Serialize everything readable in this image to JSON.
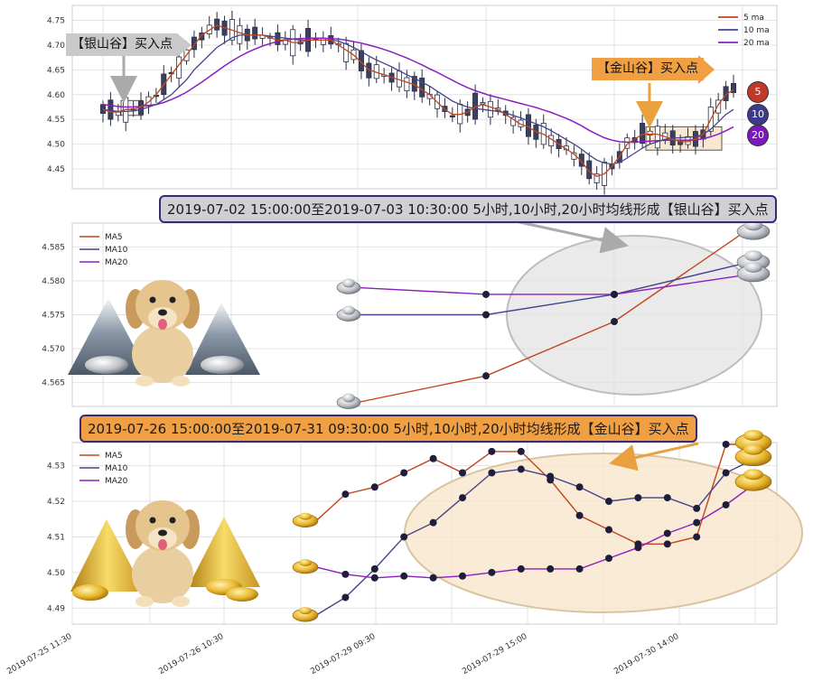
{
  "colors": {
    "ma5": "#c0461f",
    "ma10": "#44448a",
    "ma20": "#8a1fc0",
    "up_candle": "#ffffff",
    "down_candle": "#3a4060",
    "silver_banner": "#d0cfd6",
    "gold_banner": "#f0a043",
    "silver_zone": "#e3e3e3",
    "gold_zone": "#f8e6cc"
  },
  "top_panel": {
    "legend": [
      "5 ma",
      "10 ma",
      "20 ma"
    ],
    "badges": [
      "5",
      "10",
      "20"
    ],
    "silver_callout": "【银山谷】买入点",
    "gold_callout": "【金山谷】买入点"
  },
  "banners": {
    "silver": "2019-07-02 15:00:00至2019-07-03 10:30:00 5小时,10小时,20小时均线形成【银山谷】买入点",
    "gold": "2019-07-26 15:00:00至2019-07-31 09:30:00 5小时,10小时,20小时均线形成【金山谷】买入点"
  },
  "x_ticks": [
    "2019-07-25 11:30",
    "2019-07-26 10:30",
    "2019-07-29 09:30",
    "2019-07-29 15:00",
    "2019-07-30 14:00"
  ],
  "chart_data": [
    {
      "type": "candlestick",
      "yticks": [
        4.45,
        4.5,
        4.55,
        4.6,
        4.65,
        4.7,
        4.75
      ],
      "ylim": [
        4.41,
        4.78
      ],
      "n": 84,
      "ma5": [
        4.57,
        4.565,
        4.565,
        4.57,
        4.57,
        4.575,
        4.585,
        4.6,
        4.62,
        4.64,
        4.66,
        4.68,
        4.7,
        4.72,
        4.73,
        4.74,
        4.735,
        4.73,
        4.725,
        4.72,
        4.72,
        4.72,
        4.715,
        4.71,
        4.71,
        4.705,
        4.705,
        4.71,
        4.71,
        4.71,
        4.71,
        4.7,
        4.69,
        4.68,
        4.665,
        4.65,
        4.645,
        4.64,
        4.635,
        4.63,
        4.625,
        4.62,
        4.61,
        4.6,
        4.585,
        4.57,
        4.56,
        4.56,
        4.565,
        4.575,
        4.58,
        4.575,
        4.57,
        4.56,
        4.55,
        4.54,
        4.535,
        4.525,
        4.52,
        4.51,
        4.5,
        4.49,
        4.48,
        4.465,
        4.445,
        4.435,
        4.44,
        4.455,
        4.475,
        4.5,
        4.51,
        4.52,
        4.52,
        4.52,
        4.515,
        4.51,
        4.505,
        4.505,
        4.51,
        4.52,
        4.55,
        4.58,
        4.6,
        4.61
      ],
      "ma10": [
        4.57,
        4.568,
        4.566,
        4.566,
        4.567,
        4.57,
        4.575,
        4.58,
        4.59,
        4.6,
        4.615,
        4.63,
        4.65,
        4.665,
        4.68,
        4.695,
        4.705,
        4.715,
        4.72,
        4.72,
        4.72,
        4.72,
        4.718,
        4.716,
        4.714,
        4.712,
        4.71,
        4.71,
        4.71,
        4.71,
        4.71,
        4.708,
        4.702,
        4.695,
        4.687,
        4.678,
        4.67,
        4.663,
        4.656,
        4.648,
        4.64,
        4.633,
        4.625,
        4.617,
        4.607,
        4.597,
        4.587,
        4.58,
        4.575,
        4.572,
        4.57,
        4.568,
        4.566,
        4.563,
        4.558,
        4.553,
        4.547,
        4.541,
        4.535,
        4.527,
        4.518,
        4.509,
        4.5,
        4.49,
        4.478,
        4.468,
        4.462,
        4.46,
        4.463,
        4.472,
        4.482,
        4.492,
        4.5,
        4.505,
        4.51,
        4.512,
        4.513,
        4.514,
        4.515,
        4.52,
        4.53,
        4.545,
        4.56,
        4.57
      ],
      "ma20": [
        4.58,
        4.578,
        4.576,
        4.575,
        4.575,
        4.576,
        4.578,
        4.58,
        4.584,
        4.59,
        4.597,
        4.605,
        4.615,
        4.625,
        4.636,
        4.647,
        4.658,
        4.668,
        4.677,
        4.685,
        4.692,
        4.698,
        4.703,
        4.707,
        4.71,
        4.712,
        4.713,
        4.714,
        4.714,
        4.714,
        4.713,
        4.712,
        4.71,
        4.707,
        4.704,
        4.7,
        4.696,
        4.691,
        4.686,
        4.68,
        4.674,
        4.667,
        4.66,
        4.652,
        4.645,
        4.637,
        4.629,
        4.621,
        4.614,
        4.608,
        4.603,
        4.598,
        4.594,
        4.59,
        4.586,
        4.582,
        4.578,
        4.574,
        4.569,
        4.564,
        4.558,
        4.552,
        4.545,
        4.537,
        4.528,
        4.52,
        4.513,
        4.508,
        4.505,
        4.504,
        4.504,
        4.505,
        4.506,
        4.507,
        4.508,
        4.508,
        4.508,
        4.508,
        4.509,
        4.511,
        4.515,
        4.52,
        4.527,
        4.535
      ]
    },
    {
      "type": "line",
      "legend": [
        "MA5",
        "MA10",
        "MA20"
      ],
      "yticks": [
        4.565,
        4.57,
        4.575,
        4.58,
        4.585
      ],
      "ylim": [
        4.5615,
        4.5885
      ],
      "x": [
        0,
        1,
        2,
        3
      ],
      "series": [
        {
          "name": "MA5",
          "values": [
            4.5621,
            4.566,
            4.574,
            4.587
          ]
        },
        {
          "name": "MA10",
          "values": [
            4.575,
            4.575,
            4.578,
            4.5825
          ]
        },
        {
          "name": "MA20",
          "values": [
            4.579,
            4.578,
            4.578,
            4.5808
          ]
        }
      ]
    },
    {
      "type": "line",
      "legend": [
        "MA5",
        "MA10",
        "MA20"
      ],
      "yticks": [
        4.49,
        4.5,
        4.51,
        4.52,
        4.53
      ],
      "ylim": [
        4.4855,
        4.5365
      ],
      "x": [
        0,
        1,
        2,
        3,
        4,
        5,
        6,
        7,
        8,
        9,
        10,
        11,
        12,
        13,
        14,
        15
      ],
      "series": [
        {
          "name": "MA5",
          "values": [
            4.5145,
            4.522,
            4.524,
            4.528,
            4.532,
            4.528,
            4.534,
            4.534,
            4.526,
            4.516,
            4.512,
            4.508,
            4.508,
            4.51,
            4.536,
            4.536
          ]
        },
        {
          "name": "MA10",
          "values": [
            4.488,
            4.493,
            4.501,
            4.51,
            4.514,
            4.521,
            4.528,
            4.529,
            4.527,
            4.524,
            4.52,
            4.521,
            4.521,
            4.518,
            4.528,
            4.532
          ]
        },
        {
          "name": "MA20",
          "values": [
            4.5015,
            4.4995,
            4.4985,
            4.499,
            4.4985,
            4.499,
            4.5,
            4.501,
            4.501,
            4.501,
            4.504,
            4.507,
            4.511,
            4.514,
            4.519,
            4.525
          ]
        }
      ]
    }
  ]
}
